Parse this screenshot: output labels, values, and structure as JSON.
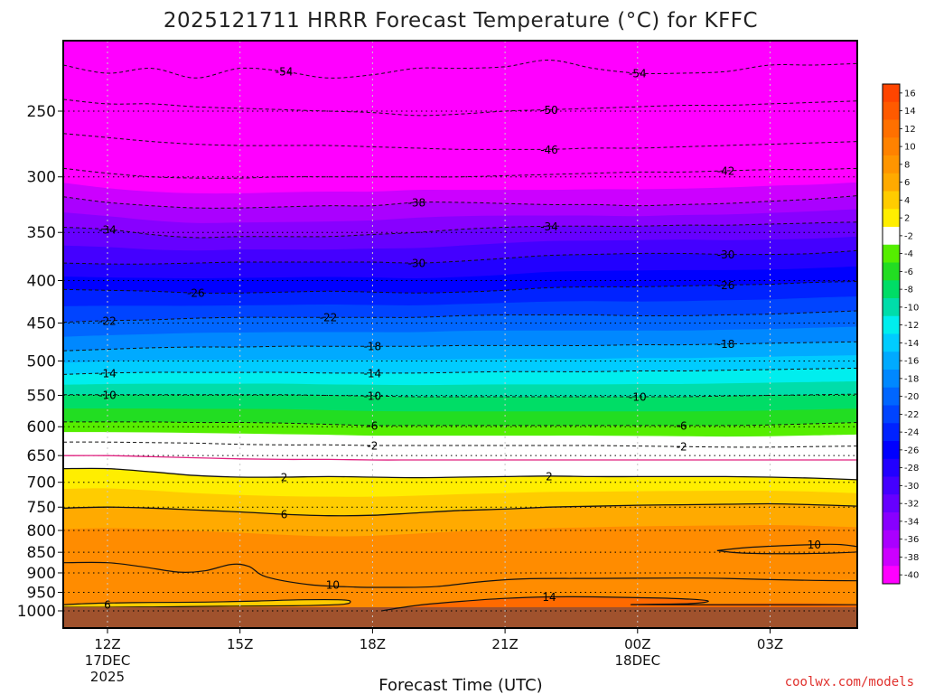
{
  "chart_data": {
    "type": "heatmap",
    "title": "2025121711 HRRR Forecast Temperature (°C) for KFFC",
    "xlabel": "Forecast Time (UTC)",
    "ylabel": "",
    "y_scale": "log",
    "y_reversed": true,
    "y_ticks": [
      250,
      300,
      350,
      400,
      450,
      500,
      550,
      600,
      650,
      700,
      750,
      800,
      850,
      900,
      950,
      1000
    ],
    "x_ticks": [
      {
        "label": "12Z",
        "sub": [
          "17DEC",
          "2025"
        ],
        "hour": 0
      },
      {
        "label": "15Z",
        "sub": [],
        "hour": 3
      },
      {
        "label": "18Z",
        "sub": [],
        "hour": 6
      },
      {
        "label": "21Z",
        "sub": [],
        "hour": 9
      },
      {
        "label": "00Z",
        "sub": [
          "18DEC"
        ],
        "hour": 12
      },
      {
        "label": "03Z",
        "sub": [],
        "hour": 15
      }
    ],
    "x_range_hours": [
      -1,
      17
    ],
    "y_range_hpa": [
      200,
      1040
    ],
    "surface_pressure_hpa": 990,
    "grid": true,
    "colorbar": {
      "position": "right",
      "labels": [
        "16",
        "14",
        "12",
        "10",
        "8",
        "6",
        "4",
        "2",
        "-2",
        "-4",
        "-6",
        "-8",
        "-10",
        "-12",
        "-14",
        "-16",
        "-18",
        "-20",
        "-22",
        "-24",
        "-26",
        "-28",
        "-30",
        "-32",
        "-34",
        "-36",
        "-38",
        "-40"
      ],
      "colors": [
        "#ff4500",
        "#ff5a00",
        "#ff7000",
        "#ff8200",
        "#ff9500",
        "#ffaa00",
        "#ffcc00",
        "#ffee00",
        "#ffffff",
        "#55ee00",
        "#22dd22",
        "#00dd66",
        "#00ddaa",
        "#00eeee",
        "#00ccff",
        "#00aaff",
        "#0088ff",
        "#0066ff",
        "#0044ff",
        "#0022ff",
        "#0000ff",
        "#2200ff",
        "#4400ff",
        "#6600ff",
        "#8800ff",
        "#aa00ff",
        "#cc00ff",
        "#ff00ff"
      ]
    },
    "levels": [
      {
        "value": -54,
        "p": [
          220,
          225,
          222,
          228,
          222,
          224,
          228,
          226,
          222,
          222,
          221,
          217,
          222,
          225,
          225,
          224,
          220,
          220,
          219
        ],
        "labels": [
          {
            "text": "-54",
            "hour": 4
          },
          {
            "text": "-54",
            "hour": 12
          }
        ]
      },
      {
        "value": -50,
        "p": [
          242,
          245,
          245,
          247,
          248,
          249,
          250,
          251,
          253,
          252,
          250,
          249,
          248,
          247,
          246,
          246,
          245,
          244,
          243
        ],
        "labels": [
          {
            "text": "-50",
            "hour": 10
          }
        ]
      },
      {
        "value": -46,
        "p": [
          266,
          269,
          272,
          274,
          275,
          275,
          275,
          276,
          277,
          278,
          278,
          278,
          277,
          277,
          276,
          275,
          274,
          273,
          272
        ],
        "labels": [
          {
            "text": "-46",
            "hour": 10
          }
        ]
      },
      {
        "value": -42,
        "p": [
          293,
          297,
          300,
          301,
          301,
          300,
          300,
          300,
          300,
          300,
          299,
          298,
          297,
          296,
          296,
          295,
          294,
          294,
          293
        ],
        "labels": [
          {
            "text": "-42",
            "hour": 14
          }
        ]
      },
      {
        "value": -38,
        "p": [
          317,
          322,
          325,
          327,
          327,
          326,
          325,
          325,
          322,
          322,
          323,
          324,
          324,
          325,
          324,
          323,
          321,
          319,
          316
        ],
        "labels": [
          {
            "text": "-38",
            "hour": 7
          }
        ]
      },
      {
        "value": -34,
        "p": [
          345,
          347,
          352,
          355,
          354,
          354,
          354,
          352,
          350,
          347,
          345,
          344,
          344,
          344,
          343,
          343,
          342,
          341,
          340
        ],
        "labels": [
          {
            "text": "-34",
            "hour": 0
          },
          {
            "text": "-34",
            "hour": 10
          }
        ]
      },
      {
        "value": -30,
        "p": [
          381,
          382,
          382,
          381,
          380,
          380,
          380,
          380,
          381,
          379,
          376,
          373,
          372,
          371,
          371,
          372,
          372,
          371,
          368
        ],
        "labels": [
          {
            "text": "-30",
            "hour": 7
          },
          {
            "text": "-30",
            "hour": 14
          }
        ]
      },
      {
        "value": -26,
        "p": [
          410,
          411,
          412,
          414,
          414,
          413,
          412,
          413,
          414,
          413,
          411,
          408,
          407,
          407,
          406,
          405,
          404,
          402,
          401
        ],
        "labels": [
          {
            "text": "-26",
            "hour": 2
          },
          {
            "text": "-26",
            "hour": 14
          }
        ]
      },
      {
        "value": -22,
        "p": [
          449,
          447,
          446,
          444,
          443,
          443,
          443,
          443,
          443,
          441,
          440,
          440,
          440,
          441,
          441,
          440,
          439,
          437,
          435
        ],
        "labels": [
          {
            "text": "-22",
            "hour": 0
          },
          {
            "text": "-22",
            "hour": 5
          }
        ]
      },
      {
        "value": -18,
        "p": [
          486,
          484,
          482,
          481,
          481,
          480,
          480,
          480,
          480,
          479,
          479,
          479,
          479,
          478,
          478,
          477,
          476,
          475,
          474
        ],
        "labels": [
          {
            "text": "-18",
            "hour": 6
          },
          {
            "text": "-18",
            "hour": 14
          }
        ]
      },
      {
        "value": -14,
        "p": [
          519,
          517,
          516,
          516,
          516,
          516,
          517,
          517,
          517,
          516,
          515,
          515,
          515,
          514,
          514,
          513,
          512,
          511,
          510
        ],
        "labels": [
          {
            "text": "-14",
            "hour": 0
          },
          {
            "text": "-14",
            "hour": 6
          }
        ]
      },
      {
        "value": -10,
        "p": [
          549,
          549,
          549,
          549,
          549,
          549,
          550,
          551,
          552,
          552,
          552,
          552,
          552,
          552,
          552,
          551,
          550,
          549,
          548
        ],
        "labels": [
          {
            "text": "-10",
            "hour": 0
          },
          {
            "text": "-10",
            "hour": 6
          },
          {
            "text": "-10",
            "hour": 12
          }
        ]
      },
      {
        "value": -6,
        "p": [
          592,
          592,
          592,
          593,
          593,
          594,
          596,
          598,
          598,
          598,
          598,
          598,
          598,
          598,
          598,
          598,
          597,
          595,
          593
        ],
        "labels": [
          {
            "text": "-6",
            "hour": 6
          },
          {
            "text": "-6",
            "hour": 13
          }
        ]
      },
      {
        "value": -2,
        "p": [
          626,
          626,
          627,
          628,
          630,
          631,
          631,
          632,
          632,
          632,
          632,
          632,
          632,
          633,
          634,
          635,
          635,
          634,
          633
        ],
        "labels": [
          {
            "text": "-2",
            "hour": 6
          },
          {
            "text": "-2",
            "hour": 13
          }
        ]
      },
      {
        "value": 2,
        "p": [
          674,
          674,
          680,
          687,
          690,
          690,
          689,
          690,
          691,
          690,
          689,
          688,
          689,
          689,
          689,
          689,
          690,
          692,
          695
        ],
        "labels": [
          {
            "text": "2",
            "hour": 4
          },
          {
            "text": "2",
            "hour": 10
          }
        ]
      },
      {
        "value": 6,
        "p": [
          752,
          750,
          752,
          756,
          760,
          765,
          768,
          767,
          762,
          757,
          754,
          750,
          748,
          746,
          745,
          744,
          743,
          745,
          748
        ],
        "labels": [
          {
            "text": "6",
            "hour": 4
          }
        ]
      }
    ],
    "freezing_line": {
      "value": 0,
      "p": [
        650,
        650,
        652,
        654,
        656,
        657,
        657,
        658,
        658,
        658,
        658,
        658,
        658,
        658,
        658,
        658,
        658,
        658,
        658
      ]
    },
    "warm_regions": [
      {
        "value": 10,
        "label": {
          "text": "10",
          "hour": 16
        },
        "outline": [
          [
            13.8,
            846
          ],
          [
            14.6,
            838
          ],
          [
            16.0,
            832
          ],
          [
            16.6,
            832
          ],
          [
            17.1,
            840
          ],
          [
            17.0,
            849
          ],
          [
            15.8,
            853
          ],
          [
            14.4,
            852
          ]
        ]
      },
      {
        "value": 10,
        "label": {
          "text": "10",
          "hour": 5.1
        },
        "outline": [
          [
            -1,
            875
          ],
          [
            0.0,
            875
          ],
          [
            0.8,
            885
          ],
          [
            1.6,
            898
          ],
          [
            2.2,
            895
          ],
          [
            2.8,
            879
          ],
          [
            3.2,
            884
          ],
          [
            3.6,
            910
          ],
          [
            4.6,
            930
          ],
          [
            5.6,
            936
          ],
          [
            6.4,
            937
          ],
          [
            7.4,
            935
          ],
          [
            8.4,
            923
          ],
          [
            9.4,
            915
          ],
          [
            11.0,
            914
          ],
          [
            13.0,
            913
          ],
          [
            14.0,
            914
          ],
          [
            15.0,
            917
          ],
          [
            16.0,
            919
          ],
          [
            17,
            920
          ],
          [
            17,
            1040
          ],
          [
            -1,
            1040
          ]
        ]
      },
      {
        "value": 14,
        "label": {
          "text": "14",
          "hour": 10.0
        },
        "outline": [
          [
            6.2,
            1000
          ],
          [
            7.0,
            985
          ],
          [
            8.0,
            974
          ],
          [
            9.0,
            966
          ],
          [
            10.0,
            962
          ],
          [
            11.0,
            962
          ],
          [
            12.0,
            964
          ],
          [
            13.0,
            967
          ],
          [
            13.6,
            973
          ],
          [
            13.2,
            980
          ],
          [
            12.0,
            983
          ],
          [
            17,
            983
          ],
          [
            17,
            1040
          ],
          [
            6.2,
            1040
          ]
        ]
      }
    ],
    "cool_pocket": {
      "value": 6,
      "label": {
        "text": "6",
        "hour": 0
      },
      "outline": [
        [
          -1,
          983
        ],
        [
          -0.2,
          979
        ],
        [
          1.0,
          977
        ],
        [
          2.2,
          976
        ],
        [
          3.4,
          973
        ],
        [
          4.3,
          970
        ],
        [
          5.3,
          970
        ],
        [
          5.5,
          975
        ],
        [
          5.3,
          982
        ],
        [
          4.2,
          986
        ],
        [
          2.8,
          987
        ],
        [
          1.2,
          989
        ],
        [
          -1,
          990
        ]
      ]
    }
  },
  "credit": "coolwx.com/models",
  "colors": {
    "contour": "#111111",
    "freezing_line": "#e0207f",
    "ground": "#a0522d",
    "warm_10": "#ff8c00",
    "warm_14": "#ff6a00",
    "cool_6": "#ffcc00"
  }
}
